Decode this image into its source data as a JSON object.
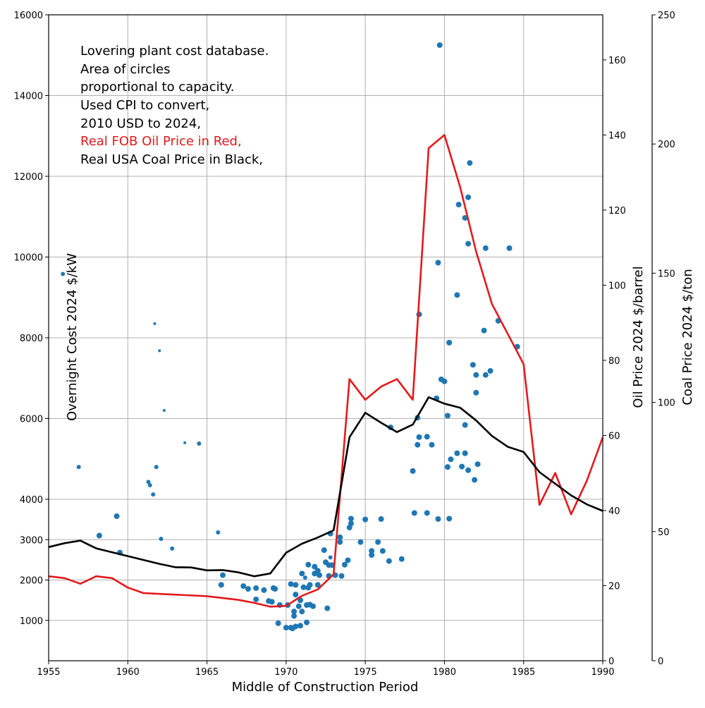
{
  "chart_data": {
    "type": "scatter",
    "xlabel": "Middle of Construction Period",
    "ylabel": "Overnight Cost 2024 $/kW",
    "y2label": "Oil Price 2024 $/barrel",
    "y3label": "Coal Price 2024 $/ton",
    "xlim": [
      1955,
      1990
    ],
    "ylim": [
      0,
      16000
    ],
    "y2lim": [
      0,
      172
    ],
    "y3lim": [
      0,
      250
    ],
    "x_ticks": [
      1955,
      1960,
      1965,
      1970,
      1975,
      1980,
      1985,
      1990
    ],
    "y_ticks": [
      1000,
      2000,
      3000,
      4000,
      6000,
      8000,
      10000,
      12000,
      14000,
      16000
    ],
    "y2_ticks": [
      0,
      20,
      40,
      60,
      80,
      100,
      120,
      140,
      160
    ],
    "y3_ticks": [
      0,
      50,
      100,
      150,
      200,
      250
    ],
    "grid": true,
    "annotation_lines": [
      "Lovering plant cost database.",
      "Area of circles",
      "proportional to capacity.",
      "Used CPI to convert,",
      "2010 USD to 2024,",
      "Real FOB Oil Price in Red,",
      "Real USA Coal Price in Black,"
    ],
    "colors": {
      "scatter": "#1f77b4",
      "oil": "#e31a1c",
      "coal": "#000000",
      "grid": "#b0b0b0"
    },
    "scatter": [
      [
        1955.9,
        9580,
        3
      ],
      [
        1956.9,
        4800,
        3
      ],
      [
        1958.2,
        3100,
        4
      ],
      [
        1959.3,
        3580,
        4
      ],
      [
        1959.5,
        2680,
        4
      ],
      [
        1961.3,
        4430,
        3
      ],
      [
        1961.4,
        4350,
        3
      ],
      [
        1961.6,
        4120,
        3
      ],
      [
        1961.7,
        8350,
        2
      ],
      [
        1961.8,
        4800,
        3
      ],
      [
        1962.0,
        7680,
        2
      ],
      [
        1962.1,
        3020,
        3
      ],
      [
        1962.3,
        6200,
        2
      ],
      [
        1962.8,
        2780,
        3
      ],
      [
        1963.6,
        5400,
        2
      ],
      [
        1964.5,
        5380,
        3
      ],
      [
        1965.7,
        3180,
        3
      ],
      [
        1965.9,
        1880,
        4
      ],
      [
        1966.0,
        2120,
        4
      ],
      [
        1967.3,
        1850,
        4
      ],
      [
        1967.6,
        1780,
        4
      ],
      [
        1968.1,
        1800,
        4
      ],
      [
        1968.1,
        1520,
        4
      ],
      [
        1968.6,
        1750,
        4
      ],
      [
        1968.9,
        1480,
        4
      ],
      [
        1969.1,
        1460,
        4
      ],
      [
        1969.2,
        1800,
        4
      ],
      [
        1969.3,
        1780,
        4
      ],
      [
        1969.5,
        930,
        4
      ],
      [
        1969.6,
        1380,
        4
      ],
      [
        1970.0,
        820,
        4
      ],
      [
        1970.1,
        1380,
        4
      ],
      [
        1970.3,
        1900,
        4
      ],
      [
        1970.3,
        820,
        4
      ],
      [
        1970.4,
        800,
        4
      ],
      [
        1970.5,
        1220,
        4
      ],
      [
        1970.5,
        1110,
        4
      ],
      [
        1970.6,
        1880,
        4
      ],
      [
        1970.6,
        1640,
        4
      ],
      [
        1970.6,
        850,
        4
      ],
      [
        1970.8,
        1350,
        4
      ],
      [
        1970.9,
        1500,
        4
      ],
      [
        1970.9,
        870,
        4
      ],
      [
        1971.0,
        1220,
        4
      ],
      [
        1971.0,
        2160,
        4
      ],
      [
        1971.1,
        1820,
        4
      ],
      [
        1971.2,
        2060,
        3
      ],
      [
        1971.3,
        1380,
        4
      ],
      [
        1971.3,
        950,
        4
      ],
      [
        1971.4,
        1810,
        4
      ],
      [
        1971.4,
        2380,
        4
      ],
      [
        1971.5,
        1880,
        4
      ],
      [
        1971.5,
        1390,
        4
      ],
      [
        1971.7,
        1350,
        4
      ],
      [
        1971.8,
        2160,
        4
      ],
      [
        1971.8,
        2330,
        4
      ],
      [
        1972.0,
        2230,
        4
      ],
      [
        1972.0,
        1880,
        4
      ],
      [
        1972.1,
        2120,
        4
      ],
      [
        1972.4,
        2740,
        4
      ],
      [
        1972.5,
        2440,
        4
      ],
      [
        1972.6,
        1300,
        4
      ],
      [
        1972.7,
        2370,
        4
      ],
      [
        1972.7,
        2100,
        4
      ],
      [
        1972.8,
        2560,
        3
      ],
      [
        1972.8,
        3150,
        4
      ],
      [
        1972.9,
        2370,
        4
      ],
      [
        1973.1,
        2120,
        4
      ],
      [
        1973.4,
        3060,
        4
      ],
      [
        1973.4,
        2940,
        4
      ],
      [
        1973.5,
        2100,
        4
      ],
      [
        1973.7,
        2380,
        4
      ],
      [
        1973.9,
        2490,
        4
      ],
      [
        1974.0,
        3300,
        4
      ],
      [
        1974.1,
        3400,
        4
      ],
      [
        1974.1,
        3520,
        4
      ],
      [
        1974.7,
        2940,
        4
      ],
      [
        1975.0,
        3500,
        4
      ],
      [
        1975.4,
        2720,
        4
      ],
      [
        1975.4,
        2620,
        4
      ],
      [
        1975.8,
        2940,
        4
      ],
      [
        1976.0,
        3510,
        4
      ],
      [
        1976.1,
        2720,
        4
      ],
      [
        1976.5,
        2470,
        4
      ],
      [
        1976.6,
        5780,
        4
      ],
      [
        1977.3,
        2520,
        4
      ],
      [
        1978.0,
        4700,
        4
      ],
      [
        1978.1,
        3660,
        4
      ],
      [
        1978.3,
        6020,
        4
      ],
      [
        1978.3,
        5350,
        4
      ],
      [
        1978.4,
        5540,
        4
      ],
      [
        1978.4,
        8580,
        4
      ],
      [
        1978.9,
        3660,
        4
      ],
      [
        1978.9,
        5550,
        4
      ],
      [
        1979.2,
        5350,
        4
      ],
      [
        1979.5,
        6500,
        4
      ],
      [
        1979.6,
        3510,
        4
      ],
      [
        1979.6,
        9860,
        4
      ],
      [
        1979.7,
        15250,
        4
      ],
      [
        1979.8,
        6970,
        4
      ],
      [
        1980.0,
        6920,
        4
      ],
      [
        1980.2,
        4800,
        4
      ],
      [
        1980.2,
        6070,
        4
      ],
      [
        1980.3,
        7880,
        4
      ],
      [
        1980.3,
        3520,
        4
      ],
      [
        1980.4,
        4990,
        4
      ],
      [
        1980.8,
        5140,
        4
      ],
      [
        1980.8,
        9060,
        4
      ],
      [
        1980.9,
        11300,
        4
      ],
      [
        1981.1,
        4810,
        4
      ],
      [
        1981.3,
        5140,
        4
      ],
      [
        1981.3,
        5840,
        4
      ],
      [
        1981.3,
        10970,
        4
      ],
      [
        1981.5,
        4720,
        4
      ],
      [
        1981.5,
        11480,
        4
      ],
      [
        1981.5,
        10330,
        4
      ],
      [
        1981.6,
        12330,
        4
      ],
      [
        1981.8,
        7330,
        4
      ],
      [
        1981.9,
        4480,
        4
      ],
      [
        1982.0,
        7080,
        4
      ],
      [
        1982.0,
        6640,
        4
      ],
      [
        1982.1,
        4870,
        4
      ],
      [
        1982.5,
        8180,
        4
      ],
      [
        1982.6,
        7080,
        4
      ],
      [
        1982.6,
        10220,
        4
      ],
      [
        1982.9,
        7180,
        4
      ],
      [
        1983.4,
        8420,
        4
      ],
      [
        1984.1,
        10220,
        4
      ],
      [
        1984.6,
        7780,
        4
      ]
    ],
    "series": [
      {
        "name": "Real FOB Oil Price",
        "axis": "y2",
        "x": [
          1955,
          1956,
          1957,
          1958,
          1959,
          1960,
          1961,
          1965,
          1966,
          1967,
          1968,
          1969,
          1970,
          1971,
          1972,
          1973,
          1974,
          1975,
          1976,
          1977,
          1978,
          1979,
          1980,
          1981,
          1982,
          1983,
          1984,
          1985,
          1986,
          1987,
          1988,
          1989,
          1990
        ],
        "values": [
          22.5,
          22,
          20.5,
          22.5,
          22,
          19.5,
          18,
          17.2,
          16.7,
          16.2,
          15.4,
          14.4,
          14.6,
          17.3,
          19,
          23,
          75,
          69.5,
          73,
          75,
          69.5,
          136.5,
          140,
          126,
          109,
          95,
          87,
          79,
          41.5,
          50,
          39,
          48,
          59.5
        ]
      },
      {
        "name": "Real USA Coal Price",
        "axis": "y3",
        "x": [
          1955,
          1956,
          1957,
          1958,
          1959,
          1960,
          1961,
          1962,
          1963,
          1964,
          1965,
          1966,
          1967,
          1968,
          1969,
          1970,
          1971,
          1972,
          1973,
          1974,
          1975,
          1976,
          1977,
          1978,
          1979,
          1980,
          1981,
          1982,
          1983,
          1984,
          1985,
          1986,
          1987,
          1988,
          1989,
          1990
        ],
        "values": [
          44,
          45.5,
          46.5,
          43.5,
          42,
          40.5,
          39,
          37.5,
          36.2,
          36.1,
          35,
          35.1,
          34.2,
          32.7,
          33.8,
          41.8,
          45.3,
          47.7,
          50.5,
          86.5,
          96,
          92.1,
          88.5,
          91.4,
          102,
          99.5,
          97.9,
          93,
          87,
          82.8,
          80.8,
          73,
          68.5,
          64,
          60.5,
          58
        ]
      }
    ]
  }
}
